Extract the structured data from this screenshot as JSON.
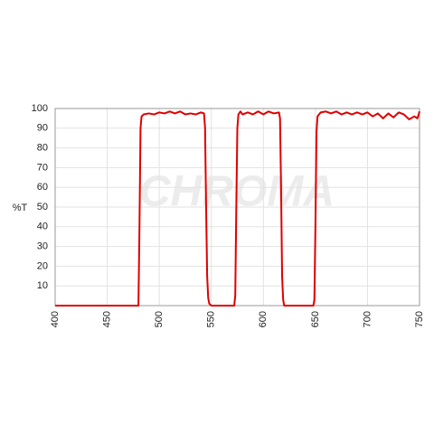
{
  "chart_data": {
    "type": "line",
    "y_label": "%T",
    "watermark": "CHROMA",
    "x": [
      400,
      480,
      481,
      482,
      483,
      485,
      490,
      495,
      500,
      505,
      510,
      515,
      520,
      525,
      530,
      535,
      540,
      543,
      544,
      545,
      546,
      547,
      548,
      550,
      572,
      573,
      574,
      575,
      576,
      578,
      580,
      585,
      590,
      595,
      600,
      605,
      610,
      615,
      616,
      617,
      618,
      619,
      620,
      648,
      649,
      650,
      651,
      652,
      655,
      660,
      665,
      670,
      675,
      680,
      685,
      690,
      695,
      700,
      705,
      710,
      715,
      720,
      725,
      730,
      735,
      740,
      745,
      748,
      750
    ],
    "series": [
      {
        "color": "#e00000",
        "values": [
          0,
          0,
          40,
          90,
          96,
          97,
          97.5,
          97,
          98,
          97.5,
          98.5,
          97.5,
          98.5,
          97,
          97.5,
          97,
          98,
          97.5,
          90,
          50,
          15,
          4,
          1,
          0,
          0,
          5,
          50,
          90,
          97,
          98.5,
          97,
          98,
          97,
          98.5,
          97,
          98.5,
          97.5,
          98,
          95,
          60,
          15,
          3,
          0,
          0,
          3,
          40,
          88,
          96,
          98,
          98.5,
          97.5,
          98.5,
          97,
          98,
          97,
          98,
          97,
          98,
          96,
          97.5,
          95,
          97.5,
          95.5,
          98,
          97,
          94.5,
          96,
          95,
          98.5
        ]
      }
    ],
    "xlim": [
      400,
      750
    ],
    "xticks": [
      400,
      450,
      500,
      550,
      600,
      650,
      700,
      750
    ],
    "ylim": [
      0,
      100
    ],
    "yticks": [
      10,
      20,
      30,
      40,
      50,
      60,
      70,
      80,
      90,
      100
    ],
    "grid": true
  }
}
